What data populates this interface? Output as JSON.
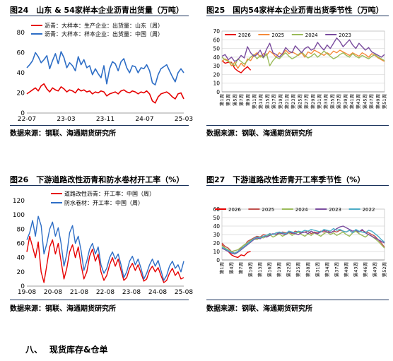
{
  "section": {
    "number": "八、",
    "title": "现货库存&仓单"
  },
  "charts": [
    {
      "key": "c24",
      "title": "图24　山东 & 54家样本企业沥青出货量（万吨）",
      "source": "数据来源：钢联、海通期货研究所"
    },
    {
      "key": "c25",
      "title": "图25　国内54家样本企业沥青出货季节性（万吨）",
      "source": "数据来源：钢联、海通期货研究所"
    },
    {
      "key": "c26",
      "title": "图26　下游道路改性沥青和防水卷材开工率（%）",
      "source": "数据来源：钢联、海通期货研究所"
    },
    {
      "key": "c27",
      "title": "图27　下游道路改性沥青开工率季节性（%）",
      "source": "数据来源：钢联、海通期货研究所"
    }
  ],
  "chart_data": [
    {
      "id": "c24",
      "type": "line",
      "x_ticks": [
        "22-07",
        "23-03",
        "23-11",
        "24-07",
        "25-03"
      ],
      "y_ticks": [
        "0",
        "20",
        "40",
        "60",
        "80"
      ],
      "ylim": [
        0,
        80
      ],
      "legend_position": "top-left",
      "series": [
        {
          "name": "沥青：大样本：生产企业：出货量：山东（周）",
          "color": "#e60000",
          "values": [
            19,
            21,
            23,
            25,
            22,
            27,
            29,
            24,
            21,
            25,
            23,
            22,
            26,
            24,
            21,
            23,
            22,
            20,
            24,
            22,
            23,
            21,
            22,
            19,
            21,
            20,
            22,
            21,
            17,
            19,
            20,
            21,
            19,
            22,
            23,
            21,
            20,
            22,
            21,
            19,
            21,
            20,
            22,
            19,
            12,
            10,
            16,
            19,
            20,
            21,
            19,
            16,
            14,
            19,
            20,
            14
          ]
        },
        {
          "name": "沥青：大样本：样本企业：出货量：中国（周）",
          "color": "#2e6ec6",
          "values": [
            45,
            48,
            52,
            60,
            56,
            50,
            53,
            57,
            44,
            52,
            59,
            49,
            61,
            55,
            45,
            50,
            47,
            42,
            56,
            48,
            53,
            45,
            47,
            38,
            44,
            39,
            35,
            47,
            29,
            44,
            51,
            49,
            42,
            51,
            54,
            45,
            40,
            47,
            46,
            40,
            45,
            44,
            48,
            42,
            30,
            28,
            38,
            44,
            46,
            48,
            42,
            36,
            31,
            40,
            44,
            40
          ]
        }
      ]
    },
    {
      "id": "c25",
      "type": "line",
      "x_ticks": [
        "第1周",
        "第3周",
        "第5周",
        "第7周",
        "第9周",
        "第11周",
        "第13周",
        "第15周",
        "第17周",
        "第19周",
        "第21周",
        "第23周",
        "第25周",
        "第27周",
        "第29周",
        "第31周",
        "第33周",
        "第35周",
        "第37周",
        "第39周",
        "第41周",
        "第43周",
        "第45周",
        "第47周",
        "第49周",
        "第51周"
      ],
      "y_ticks": [
        "0",
        "10",
        "20",
        "30",
        "40",
        "50",
        "60",
        "70"
      ],
      "ylim": [
        0,
        70
      ],
      "legend_position": "top",
      "series": [
        {
          "name": "2026",
          "color": "#e60000",
          "values": [
            36,
            33,
            34,
            34,
            27,
            24,
            22,
            26,
            29,
            25
          ]
        },
        {
          "name": "2025",
          "color": "#f58a3a",
          "values": [
            35,
            38,
            36,
            30,
            34,
            27,
            33,
            29,
            38,
            36,
            42,
            45,
            40,
            44,
            42,
            47,
            44,
            40,
            45,
            43,
            48,
            44,
            46,
            44,
            42,
            45,
            40,
            46,
            44,
            48,
            46,
            44,
            42,
            45,
            43,
            47,
            45,
            48,
            46,
            44,
            42,
            45,
            43,
            41,
            45,
            43,
            40,
            44,
            42,
            39,
            37,
            35
          ]
        },
        {
          "name": "2024",
          "color": "#9bbb59",
          "values": [
            40,
            37,
            35,
            33,
            30,
            38,
            35,
            32,
            36,
            40,
            43,
            38,
            42,
            39,
            44,
            30,
            36,
            40,
            38,
            42,
            45,
            41,
            38,
            40,
            43,
            46,
            42,
            39,
            41,
            44,
            40,
            43,
            47,
            44,
            41,
            38,
            40,
            43,
            45,
            42,
            40,
            44,
            41,
            39,
            42,
            40,
            38,
            41,
            43,
            40,
            38,
            36
          ]
        },
        {
          "name": "2023",
          "color": "#7a4c9e",
          "values": [
            41,
            43,
            37,
            40,
            35,
            37,
            42,
            39,
            52,
            45,
            41,
            43,
            48,
            40,
            49,
            56,
            45,
            43,
            40,
            44,
            51,
            47,
            45,
            53,
            49,
            45,
            50,
            52,
            48,
            50,
            57,
            52,
            48,
            54,
            50,
            56,
            62,
            58,
            52,
            56,
            60,
            54,
            50,
            56,
            52,
            48,
            51,
            46,
            44,
            42,
            40,
            43
          ]
        }
      ]
    },
    {
      "id": "c26",
      "type": "line",
      "x_ticks": [
        "19-08",
        "20-08",
        "21-08",
        "22-08",
        "23-08",
        "24-08",
        "25-08"
      ],
      "y_ticks": [
        "0",
        "20",
        "40",
        "60",
        "80",
        "100",
        "120"
      ],
      "ylim": [
        0,
        120
      ],
      "legend_position": "top-left",
      "series": [
        {
          "name": "道路改性沥青：开工率：中国（周）",
          "color": "#e60000",
          "values": [
            48,
            70,
            55,
            40,
            62,
            20,
            5,
            30,
            55,
            65,
            45,
            60,
            35,
            10,
            25,
            48,
            58,
            40,
            55,
            30,
            10,
            20,
            42,
            52,
            35,
            45,
            20,
            8,
            15,
            30,
            40,
            28,
            38,
            22,
            8,
            12,
            25,
            32,
            22,
            30,
            18,
            7,
            10,
            22,
            28,
            20,
            26,
            15,
            5,
            8,
            18,
            25,
            15,
            20,
            10,
            12
          ]
        },
        {
          "name": "防水卷材：开工率：中国（周）",
          "color": "#2e6ec6",
          "values": [
            65,
            75,
            92,
            70,
            98,
            85,
            45,
            60,
            80,
            90,
            70,
            82,
            60,
            28,
            45,
            75,
            85,
            60,
            70,
            50,
            22,
            35,
            52,
            60,
            45,
            55,
            30,
            18,
            25,
            40,
            48,
            38,
            45,
            30,
            12,
            20,
            35,
            42,
            30,
            38,
            25,
            10,
            18,
            30,
            38,
            28,
            36,
            22,
            8,
            15,
            28,
            35,
            25,
            30,
            20,
            35
          ]
        }
      ]
    },
    {
      "id": "c27",
      "type": "line",
      "x_ticks": [
        "第1周",
        "第4周",
        "第7周",
        "第10周",
        "第13周",
        "第16周",
        "第19周",
        "第22周",
        "第25周",
        "第28周",
        "第31周",
        "第34周",
        "第37周",
        "第40周",
        "第43周",
        "第46周",
        "第49周",
        "第52周"
      ],
      "y_ticks": [
        "0",
        "10",
        "20",
        "30",
        "40",
        "50",
        "60"
      ],
      "ylim": [
        0,
        60
      ],
      "legend_position": "top",
      "series": [
        {
          "name": "2026",
          "color": "#e60000",
          "values": [
            18,
            14,
            10,
            6,
            4,
            3,
            6,
            5,
            9,
            10
          ]
        },
        {
          "name": "2025",
          "color": "#c0504d",
          "values": [
            20,
            16,
            14,
            10,
            8,
            10,
            14,
            16,
            22,
            24,
            26,
            28,
            27,
            30,
            29,
            31,
            30,
            32,
            31,
            33,
            32,
            33,
            31,
            34,
            33,
            32,
            33,
            34,
            31,
            33,
            32,
            34,
            33,
            35,
            32,
            34,
            33,
            35,
            34,
            33,
            35,
            32,
            34,
            33,
            35,
            33,
            32,
            30,
            28,
            24,
            20,
            15
          ]
        },
        {
          "name": "2024",
          "color": "#9bbb59",
          "values": [
            17,
            14,
            12,
            10,
            11,
            12,
            15,
            18,
            20,
            23,
            25,
            24,
            27,
            26,
            28,
            30,
            27,
            29,
            31,
            28,
            30,
            32,
            29,
            31,
            33,
            30,
            28,
            31,
            29,
            32,
            30,
            28,
            31,
            33,
            30,
            32,
            29,
            31,
            33,
            30,
            28,
            32,
            34,
            31,
            29,
            27,
            30,
            28,
            25,
            22,
            18,
            14
          ]
        },
        {
          "name": "2023",
          "color": "#7a4c9e",
          "values": [
            14,
            12,
            10,
            8,
            7,
            9,
            12,
            15,
            18,
            21,
            24,
            26,
            25,
            28,
            27,
            29,
            31,
            30,
            32,
            31,
            30,
            33,
            32,
            31,
            30,
            32,
            33,
            31,
            34,
            32,
            31,
            33,
            35,
            33,
            32,
            34,
            37,
            39,
            40,
            38,
            36,
            34,
            35,
            33,
            36,
            32,
            30,
            28,
            26,
            24,
            22,
            20
          ]
        },
        {
          "name": "2022",
          "color": "#4bacc6",
          "values": [
            15,
            13,
            11,
            9,
            8,
            10,
            13,
            16,
            19,
            22,
            25,
            27,
            26,
            28,
            29,
            31,
            30,
            32,
            33,
            32,
            31,
            34,
            33,
            32,
            34,
            33,
            35,
            34,
            36,
            35,
            34,
            33,
            36,
            35,
            34,
            37,
            35,
            36,
            34,
            33,
            35,
            32,
            36,
            34,
            33,
            32,
            35,
            34,
            31,
            28,
            24,
            21
          ]
        }
      ]
    }
  ]
}
